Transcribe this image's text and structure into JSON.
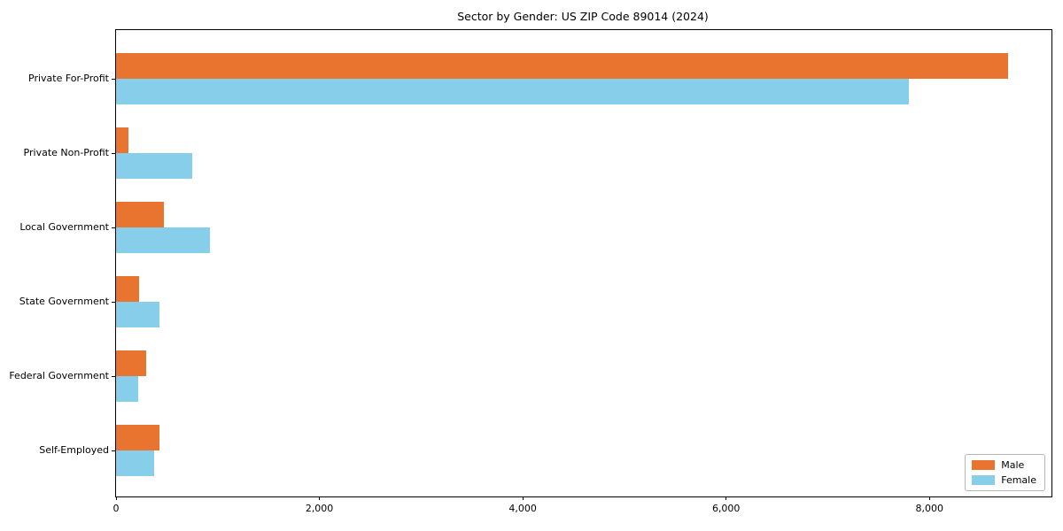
{
  "chart_data": {
    "type": "bar",
    "orientation": "horizontal",
    "title": "Sector by Gender: US ZIP Code 89014 (2024)",
    "categories": [
      "Private For-Profit",
      "Private Non-Profit",
      "Local Government",
      "State Government",
      "Federal Government",
      "Self-Employed"
    ],
    "series": [
      {
        "name": "Male",
        "color": "#e8742f",
        "values": [
          8770,
          120,
          470,
          225,
          295,
          430
        ]
      },
      {
        "name": "Female",
        "color": "#87ceeb",
        "values": [
          7800,
          750,
          920,
          430,
          215,
          375
        ]
      }
    ],
    "x_ticks": [
      0,
      2000,
      4000,
      6000,
      8000
    ],
    "x_tick_labels": [
      "0",
      "2,000",
      "4,000",
      "6,000",
      "8,000"
    ],
    "xlim": [
      0,
      9200
    ],
    "xlabel": "",
    "ylabel": "",
    "grid": false,
    "legend_position": "lower right"
  }
}
